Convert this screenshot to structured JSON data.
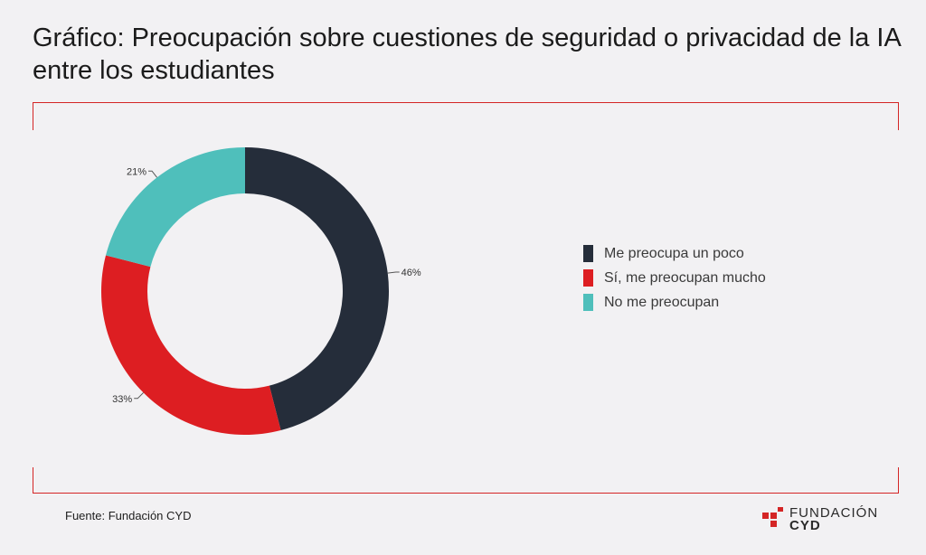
{
  "title": "Gráfico: Preocupación sobre cuestiones de seguridad o privacidad de la IA entre los estudiantes",
  "source": "Fuente: Fundación CYD",
  "logo": {
    "line1": "FUNDACIÓN",
    "line2": "CYD"
  },
  "colors": {
    "frame": "#d42525",
    "background": "#f2f1f3"
  },
  "chart_data": {
    "type": "pie",
    "variant": "donut",
    "title": "",
    "legend_position": "right",
    "slices": [
      {
        "name": "Me preocupa un poco",
        "value": 46,
        "label": "46%",
        "color": "#252d3a"
      },
      {
        "name": "Sí, me preocupan mucho",
        "value": 33,
        "label": "33%",
        "color": "#dd1e22"
      },
      {
        "name": "No me preocupan",
        "value": 21,
        "label": "21%",
        "color": "#4fbfbb"
      }
    ]
  }
}
